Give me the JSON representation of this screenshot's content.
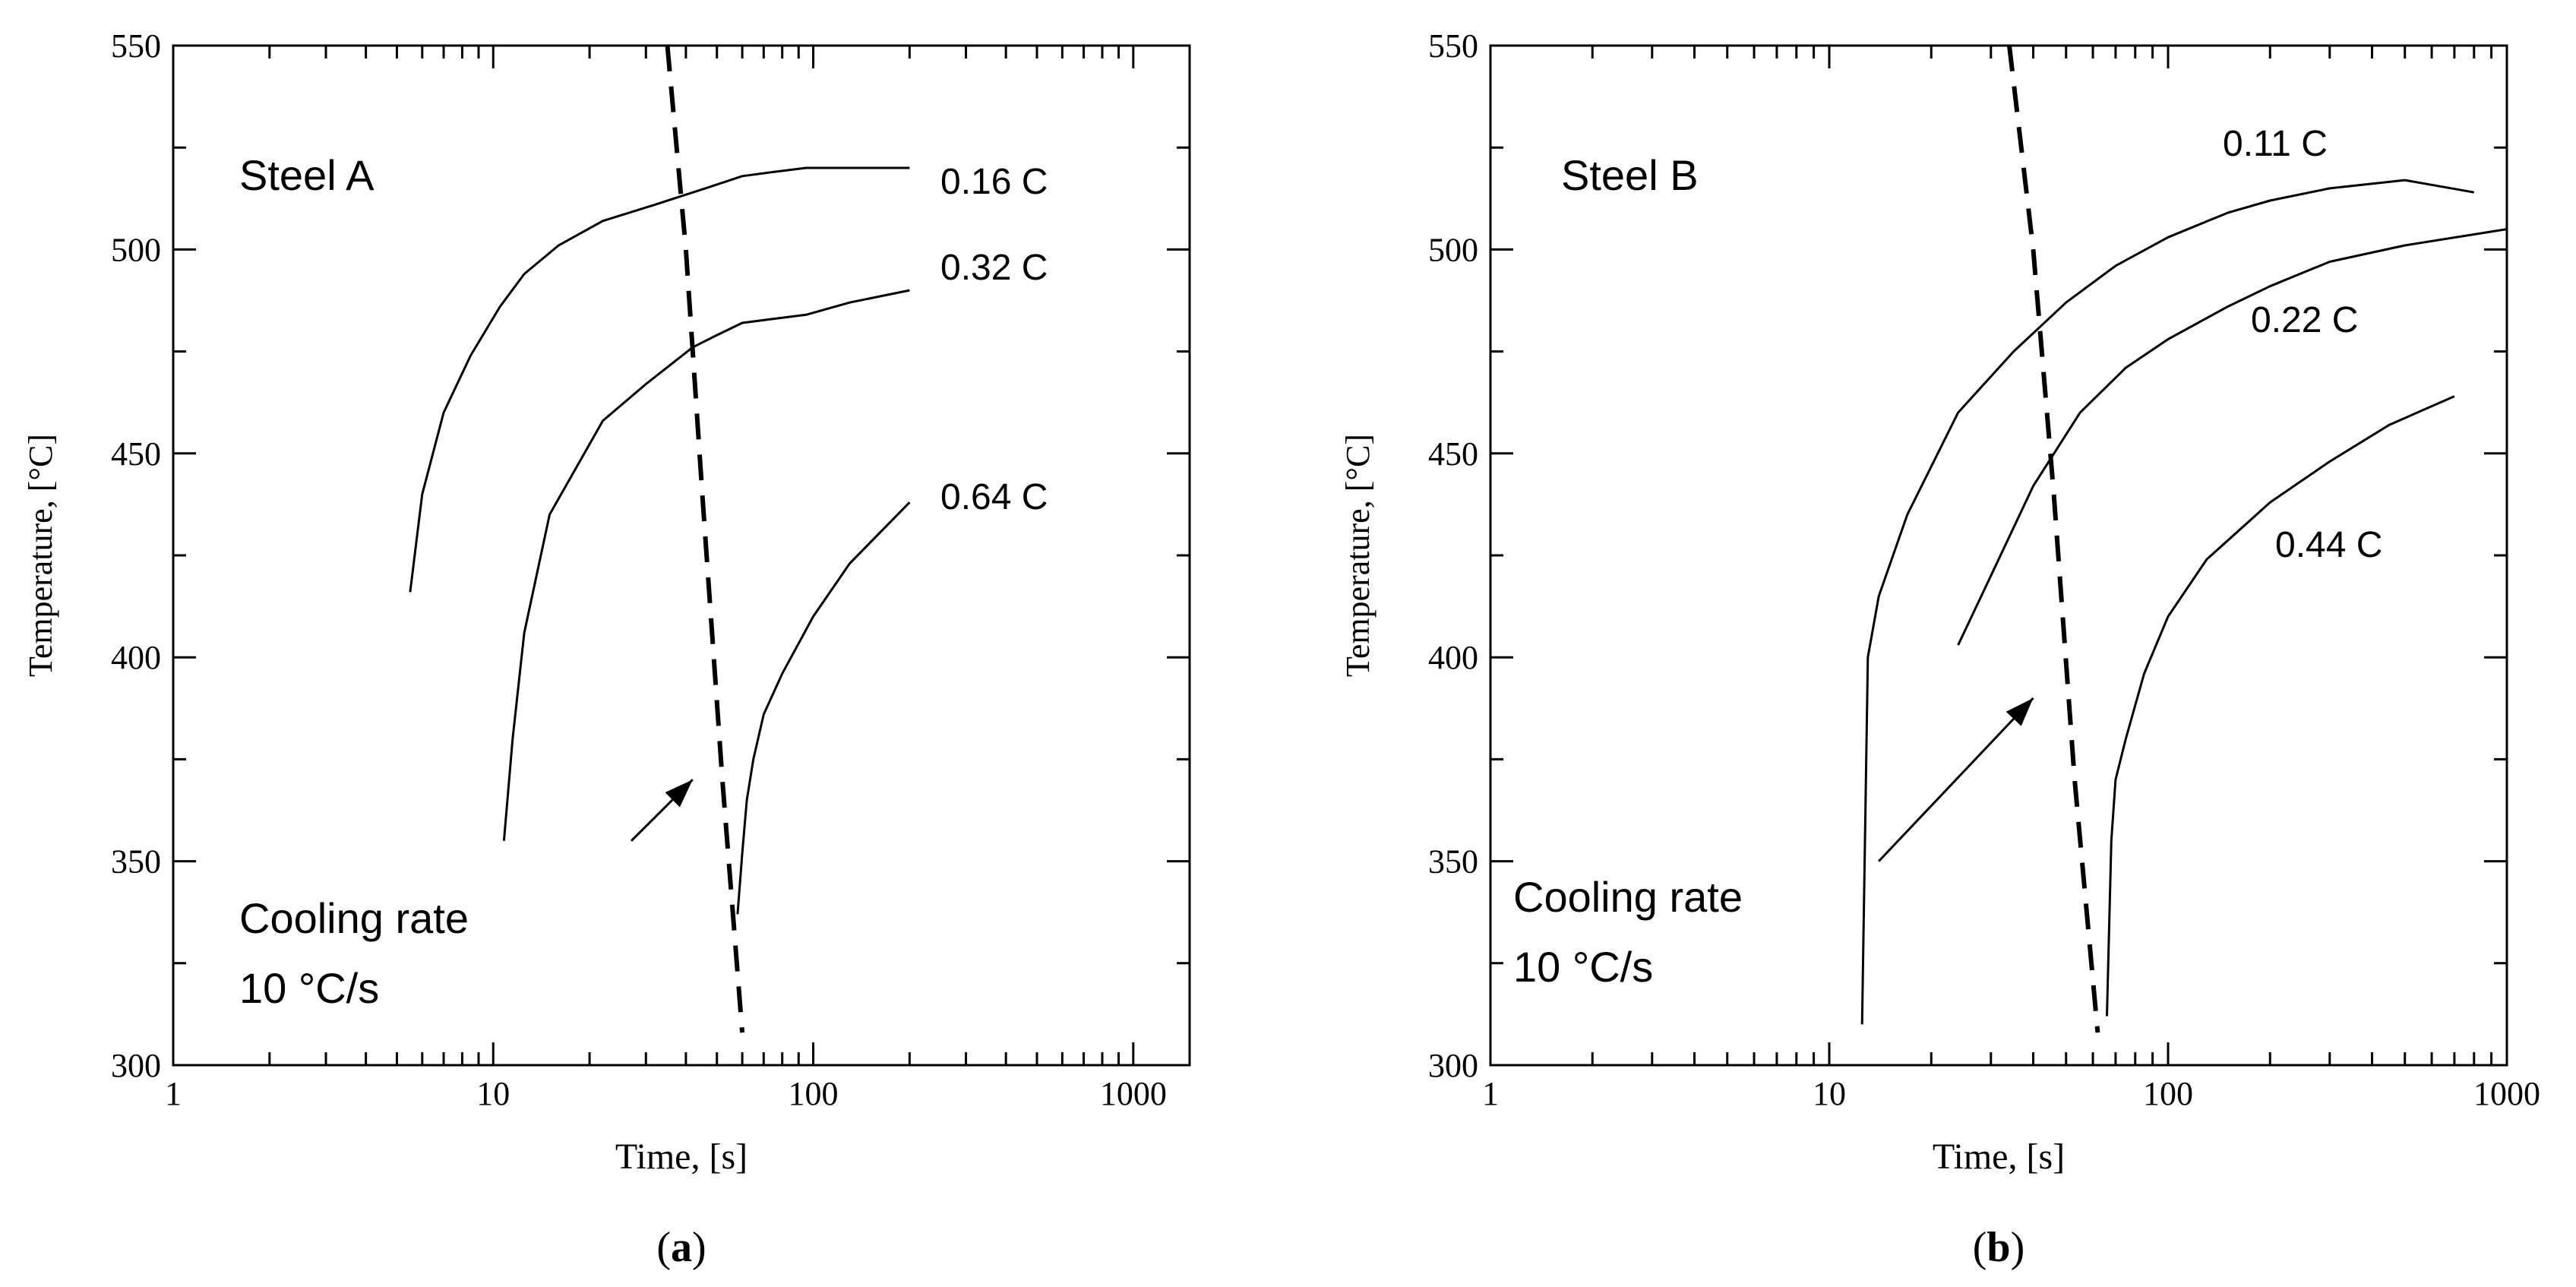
{
  "chart_data": [
    {
      "type": "line",
      "panel_label": "a",
      "xlabel": "Time, [s]",
      "ylabel": "Temperature, [°C]",
      "x_scale": "log",
      "xlim": [
        1,
        1500
      ],
      "ylim": [
        300,
        550
      ],
      "xticks": [
        1,
        10,
        100,
        1000
      ],
      "xtick_labels": [
        "1",
        "10",
        "100",
        "1000"
      ],
      "yticks": [
        300,
        350,
        400,
        450,
        500,
        550
      ],
      "ytick_labels": [
        "300",
        "350",
        "400",
        "450",
        "500",
        "550"
      ],
      "grid": false,
      "steel_label": "Steel A",
      "series": [
        {
          "name": "0.16 C",
          "x": [
            5.5,
            6,
            7,
            8.5,
            10.5,
            12.5,
            16,
            22,
            32,
            46,
            60,
            75,
            95,
            130,
            200
          ],
          "y": [
            416,
            440,
            460,
            474,
            486,
            494,
            501,
            507,
            511,
            515,
            518,
            519,
            520,
            520,
            520
          ]
        },
        {
          "name": "0.32 C",
          "x": [
            10.8,
            11.5,
            12.5,
            15,
            22,
            30,
            42,
            50,
            60,
            75,
            95,
            130,
            200
          ],
          "y": [
            355,
            380,
            406,
            435,
            458,
            467,
            476,
            479,
            482,
            483,
            484,
            487,
            490
          ]
        },
        {
          "name": "0.64 C",
          "x": [
            58,
            60,
            62,
            65,
            70,
            80,
            100,
            130,
            200
          ],
          "y": [
            337,
            352,
            365,
            375,
            386,
            396,
            410,
            423,
            438
          ]
        }
      ],
      "cooling_line": {
        "name": "Cooling rate",
        "x": [
          35,
          40,
          45,
          52,
          60
        ],
        "y": [
          550,
          500,
          440,
          370,
          308
        ]
      },
      "annotation": {
        "line1": "Cooling rate",
        "line2": "10 °C/s",
        "arrow_to": [
          42,
          370
        ],
        "arrow_from": [
          27,
          355
        ]
      }
    },
    {
      "type": "line",
      "panel_label": "b",
      "xlabel": "Time, [s]",
      "ylabel": "Temperature, [°C]",
      "x_scale": "log",
      "xlim": [
        1,
        1000
      ],
      "ylim": [
        300,
        550
      ],
      "xticks": [
        1,
        10,
        100,
        1000
      ],
      "xtick_labels": [
        "1",
        "10",
        "100",
        "1000"
      ],
      "yticks": [
        300,
        350,
        400,
        450,
        500,
        550
      ],
      "ytick_labels": [
        "300",
        "350",
        "400",
        "450",
        "500",
        "550"
      ],
      "grid": false,
      "steel_label": "Steel B",
      "series": [
        {
          "name": "0.11 C",
          "x": [
            12.5,
            13,
            14,
            17,
            24,
            35,
            50,
            70,
            100,
            150,
            200,
            300,
            500,
            800
          ],
          "y": [
            310,
            400,
            415,
            435,
            460,
            475,
            487,
            496,
            503,
            509,
            512,
            515,
            517,
            514
          ]
        },
        {
          "name": "0.22 C",
          "x": [
            24,
            30,
            40,
            55,
            75,
            100,
            150,
            200,
            300,
            500,
            1000
          ],
          "y": [
            403,
            420,
            442,
            460,
            471,
            478,
            486,
            491,
            497,
            501,
            505
          ]
        },
        {
          "name": "0.44 C",
          "x": [
            66,
            68,
            70,
            75,
            85,
            100,
            130,
            200,
            300,
            450,
            700
          ],
          "y": [
            312,
            355,
            370,
            380,
            396,
            410,
            424,
            438,
            448,
            457,
            464
          ]
        }
      ],
      "cooling_line": {
        "name": "Cooling rate",
        "x": [
          34,
          40,
          46,
          53,
          62
        ],
        "y": [
          550,
          500,
          440,
          370,
          308
        ]
      },
      "annotation": {
        "line1": "Cooling rate",
        "line2": "10 °C/s",
        "arrow_to": [
          40,
          390
        ],
        "arrow_from": [
          14,
          350
        ]
      }
    }
  ]
}
